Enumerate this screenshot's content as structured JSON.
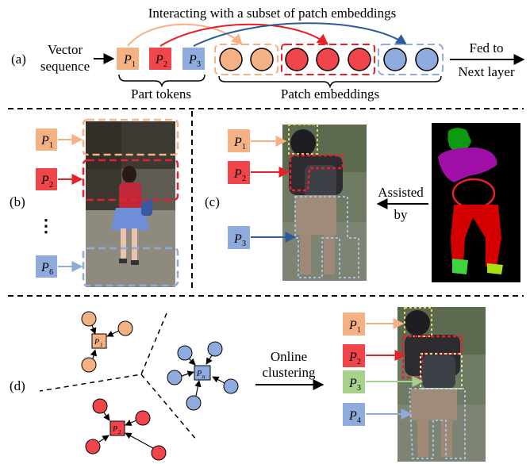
{
  "header": {
    "title": "Interacting with a subset of patch embeddings"
  },
  "panel_a": {
    "label": "(a)",
    "input_line1": "Vector",
    "input_line2": "sequence",
    "tokens": [
      {
        "letter": "P",
        "sub": "1",
        "color": "#F4B183"
      },
      {
        "letter": "P",
        "sub": "2",
        "color": "#F0454B"
      },
      {
        "letter": "P",
        "sub": "3",
        "color": "#8FAADC"
      }
    ],
    "part_tokens_label": "Part tokens",
    "patch_label": "Patch embeddings",
    "output_line1": "Fed to",
    "output_line2": "Next layer"
  },
  "panel_b": {
    "label": "(b)",
    "tokens": [
      {
        "letter": "P",
        "sub": "1",
        "color": "#F4B183"
      },
      {
        "letter": "P",
        "sub": "2",
        "color": "#F0454B"
      },
      {
        "letter": "P",
        "sub": "6",
        "color": "#8FAADC"
      }
    ],
    "ellipsis": "⋮"
  },
  "panel_c": {
    "label": "(c)",
    "tokens": [
      {
        "letter": "P",
        "sub": "1",
        "color": "#F4B183"
      },
      {
        "letter": "P",
        "sub": "2",
        "color": "#F0454B"
      },
      {
        "letter": "P",
        "sub": "3",
        "color": "#8FAADC"
      }
    ],
    "assist_line1": "Assisted",
    "assist_line2": "by"
  },
  "panel_d": {
    "label": "(d)",
    "cluster_tokens": [
      {
        "letter": "P",
        "sub": "1",
        "color": "#F4B183"
      },
      {
        "letter": "P",
        "sub": "n",
        "color": "#8FAADC"
      },
      {
        "letter": "P",
        "sub": "2",
        "color": "#F0454B"
      }
    ],
    "clustering_line1": "Online",
    "clustering_line2": "clustering",
    "tokens": [
      {
        "letter": "P",
        "sub": "1",
        "color": "#F4B183"
      },
      {
        "letter": "P",
        "sub": "2",
        "color": "#F0454B"
      },
      {
        "letter": "P",
        "sub": "3",
        "color": "#A9D18E"
      },
      {
        "letter": "P",
        "sub": "4",
        "color": "#8FAADC"
      }
    ]
  }
}
